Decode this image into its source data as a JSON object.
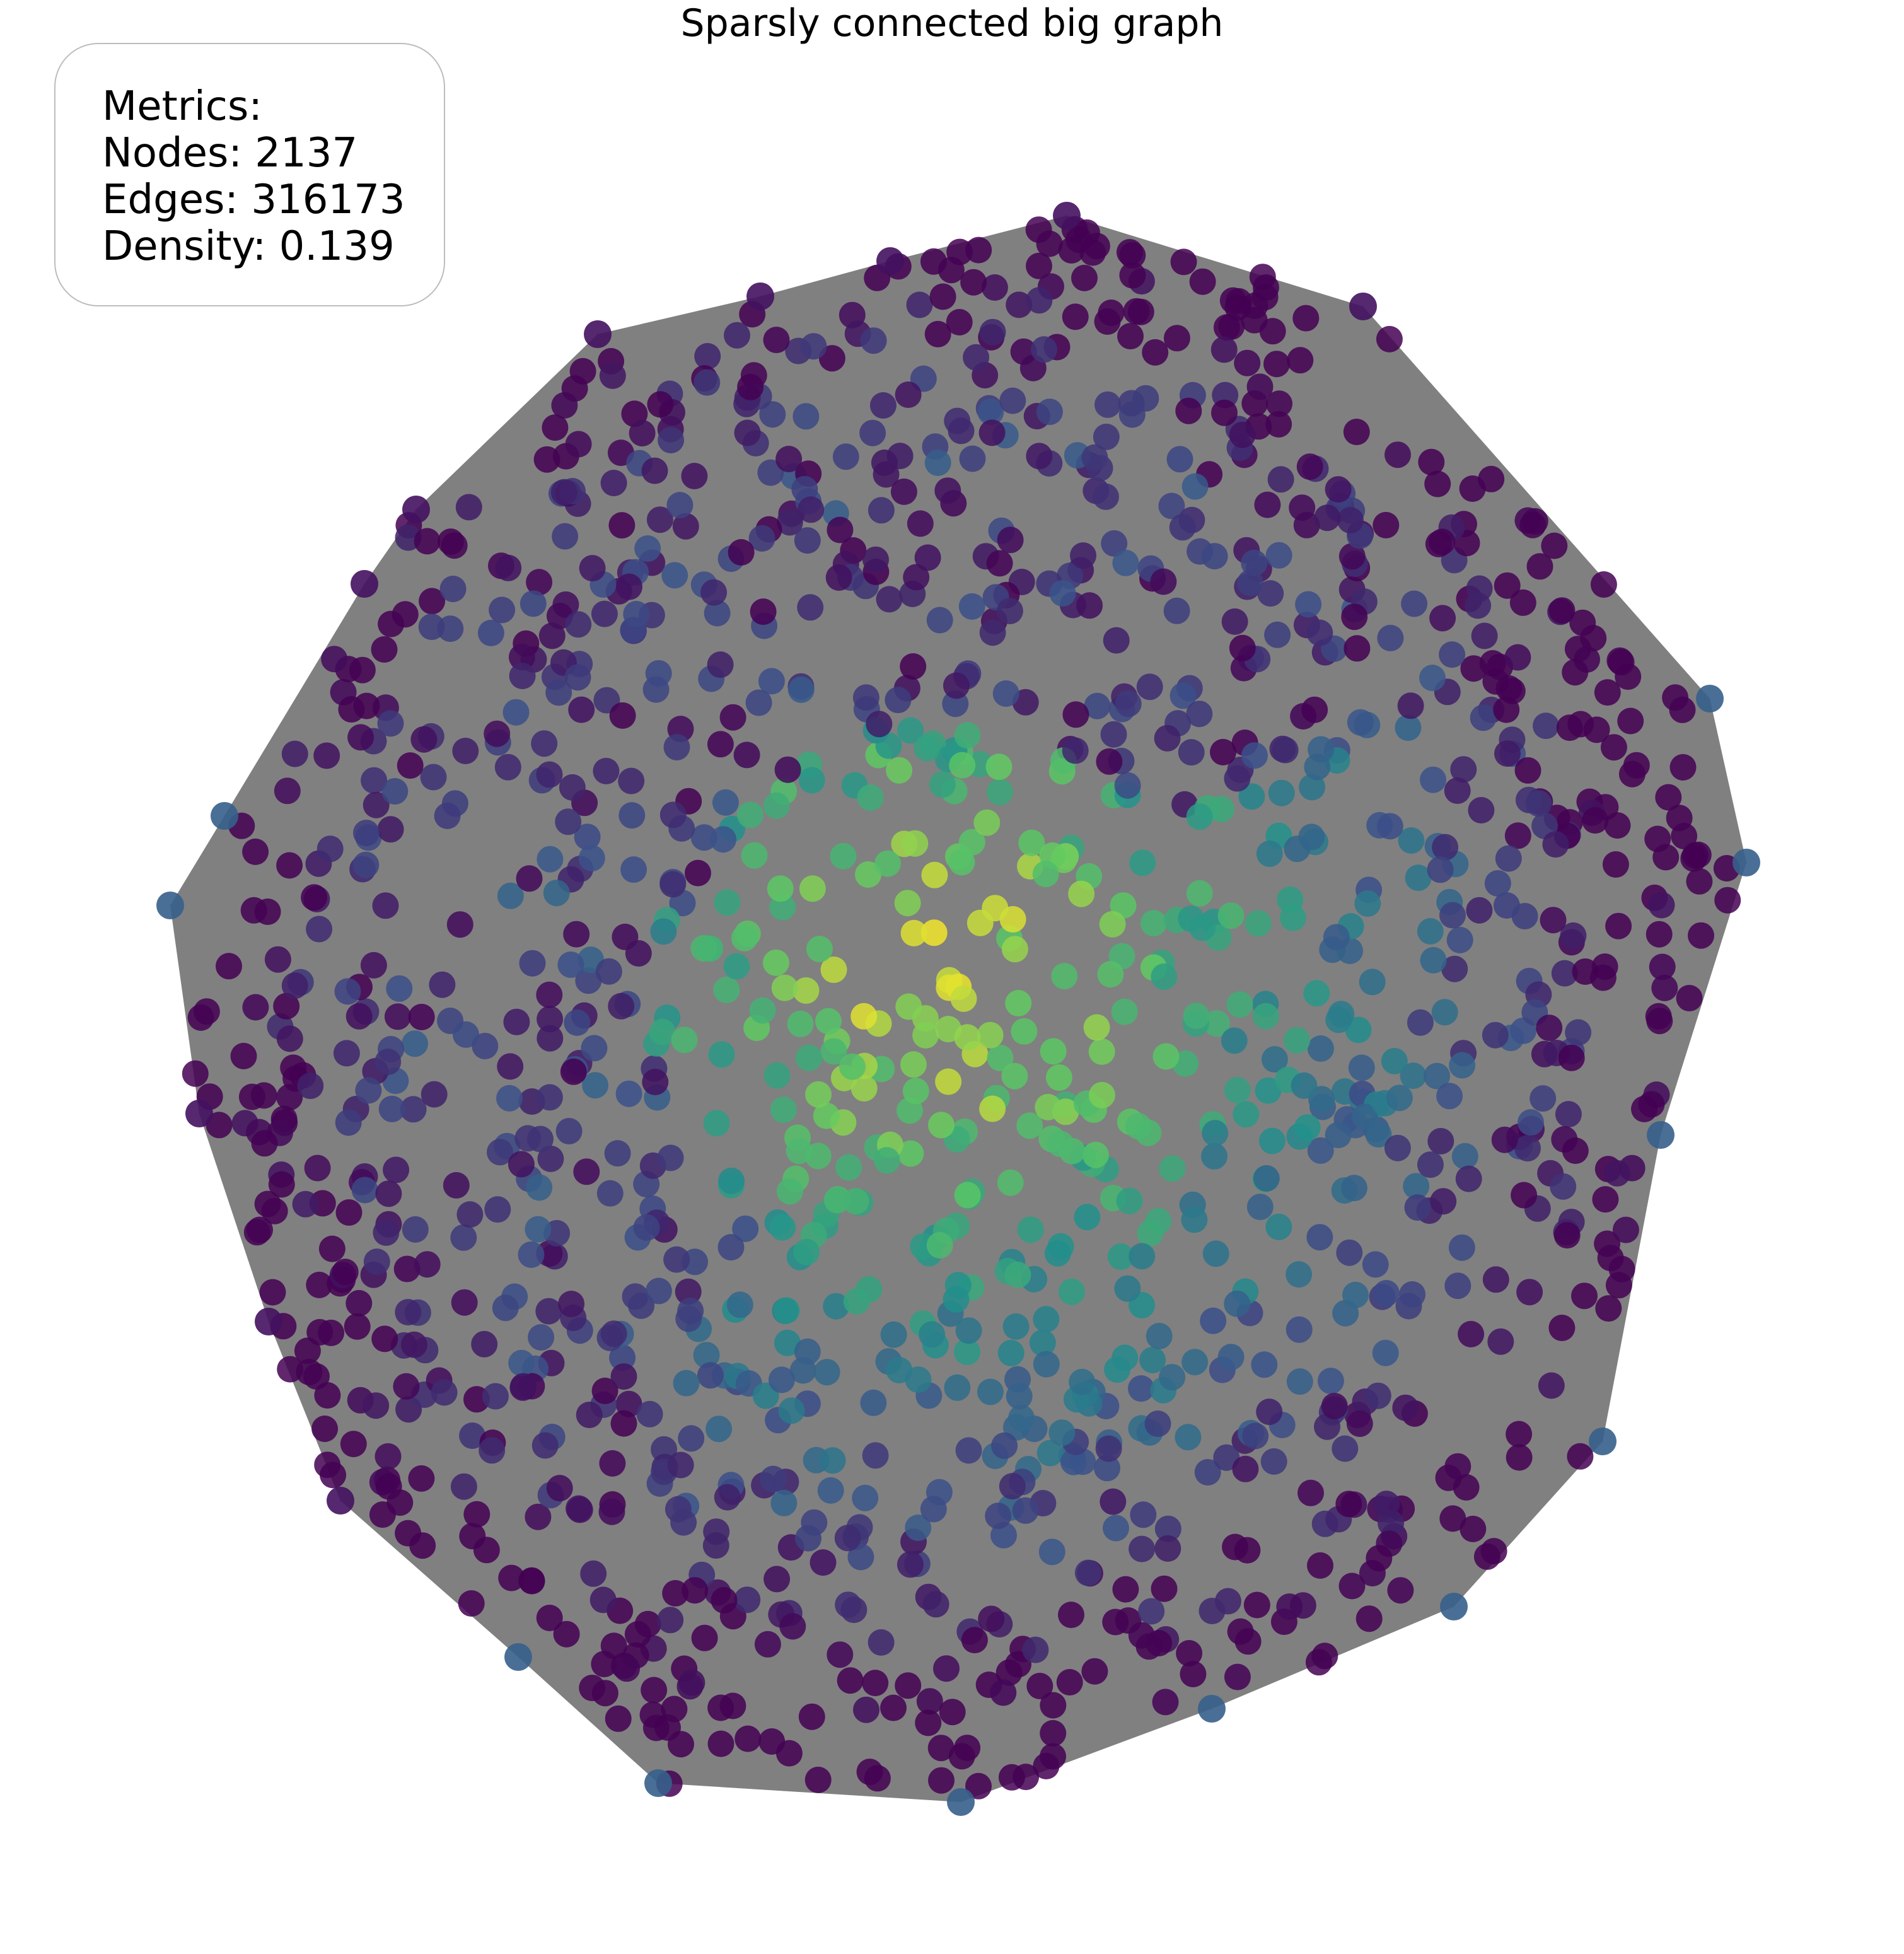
{
  "title": "Sparsly connected big graph",
  "metrics": {
    "heading": "Metrics:",
    "nodes_label": "Nodes: 2137",
    "edges_label": "Edges: 316173",
    "density_label": "Density: 0.139"
  },
  "colors": {
    "edge": "#808080",
    "hull_fill": "#808080",
    "colormap": [
      "#440154",
      "#3b528b",
      "#21918c",
      "#5ec962",
      "#fde725"
    ]
  },
  "graph": {
    "node_count": 2137,
    "edge_count": 316173,
    "layout": "spring",
    "node_coloring": "degree centrality (viridis)"
  }
}
